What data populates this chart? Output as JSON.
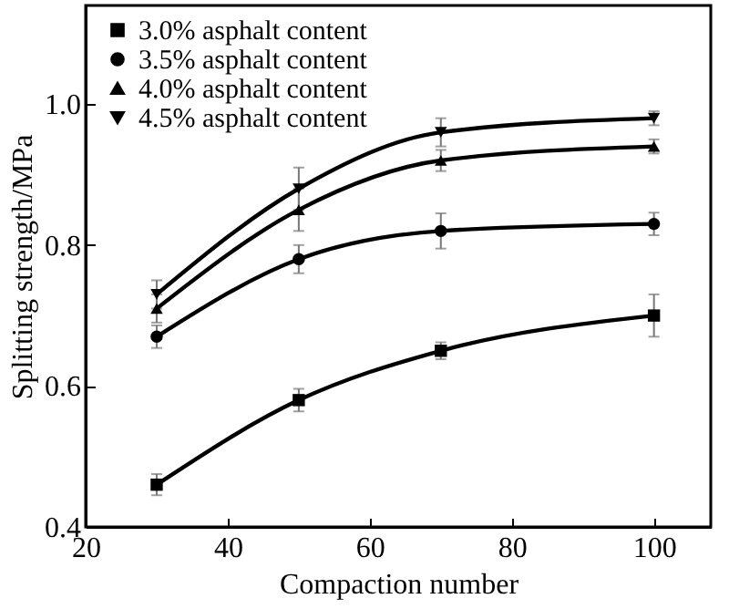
{
  "chart_data": {
    "type": "line",
    "xlabel": "Compaction number",
    "ylabel": "Splitting strength/MPa",
    "x": [
      30,
      50,
      70,
      100
    ],
    "xlim": [
      20,
      108
    ],
    "xticks": [
      20,
      40,
      60,
      80,
      100
    ],
    "ylim": [
      0.4,
      1.14
    ],
    "yticks": [
      {
        "value": 0.4,
        "label": "0.4"
      },
      {
        "value": 0.6,
        "label": "0.6"
      },
      {
        "value": 0.8,
        "label": "0.8"
      },
      {
        "value": 1.0,
        "label": "1.0"
      }
    ],
    "legend": "top left",
    "grid": false,
    "series": [
      {
        "name": "3.0% asphalt content",
        "color": "#000000",
        "marker": "square",
        "values": [
          0.46,
          0.58,
          0.65,
          0.7
        ],
        "errors": [
          0.015,
          0.016,
          0.012,
          0.03
        ]
      },
      {
        "name": "3.5% asphalt content",
        "color": "#000000",
        "marker": "circle",
        "values": [
          0.67,
          0.78,
          0.82,
          0.83
        ],
        "errors": [
          0.016,
          0.02,
          0.025,
          0.016
        ]
      },
      {
        "name": "4.0% asphalt content",
        "color": "#000000",
        "marker": "triangle",
        "values": [
          0.71,
          0.85,
          0.92,
          0.94
        ],
        "errors": [
          0.02,
          0.03,
          0.015,
          0.01
        ]
      },
      {
        "name": "4.5% asphalt content",
        "color": "#000000",
        "marker": "triangle-down",
        "values": [
          0.73,
          0.88,
          0.96,
          0.98
        ],
        "errors": [
          0.02,
          0.03,
          0.02,
          0.01
        ]
      }
    ]
  }
}
